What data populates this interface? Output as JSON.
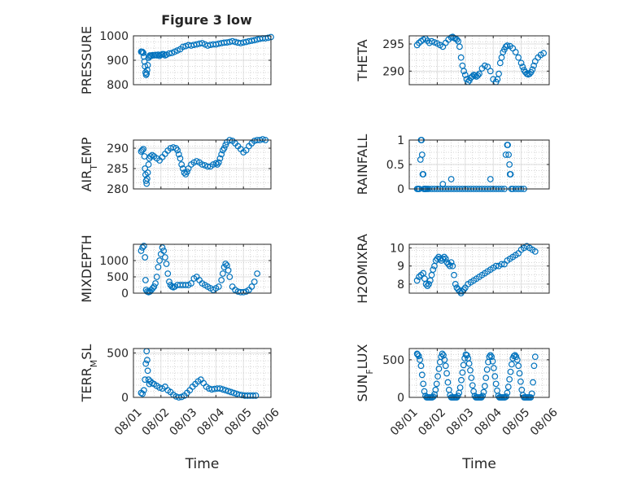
{
  "figure_title": "Figure 3 low",
  "x_axis": {
    "tick_labels": [
      "08/01",
      "08/02",
      "08/03",
      "08/04",
      "08/05",
      "08/06"
    ],
    "label": "Time"
  },
  "colors": {
    "marker": "#0072BD",
    "axis": "#262626",
    "grid": "#DFDFDF",
    "background": "#FFFFFF"
  },
  "chart_data": [
    {
      "type": "scatter",
      "ylabel": "PRESSURE",
      "title": "Figure 3 low",
      "xlim": [
        0,
        5
      ],
      "ylim": [
        800,
        1000
      ],
      "yticks": [
        800,
        900,
        1000
      ],
      "grid": true,
      "x": [
        0.28,
        0.3,
        0.33,
        0.36,
        0.38,
        0.4,
        0.42,
        0.44,
        0.46,
        0.48,
        0.5,
        0.52,
        0.55,
        0.58,
        0.6,
        0.65,
        0.7,
        0.75,
        0.8,
        0.85,
        0.9,
        0.95,
        1.0,
        1.05,
        1.1,
        1.15,
        1.2,
        1.3,
        1.4,
        1.5,
        1.6,
        1.7,
        1.8,
        1.9,
        2.0,
        2.1,
        2.2,
        2.3,
        2.4,
        2.5,
        2.6,
        2.7,
        2.8,
        2.9,
        3.0,
        3.1,
        3.2,
        3.3,
        3.4,
        3.5,
        3.6,
        3.7,
        3.8,
        3.9,
        4.0,
        4.1,
        4.2,
        4.3,
        4.4,
        4.5,
        4.6,
        4.7,
        4.8,
        4.9,
        5.0
      ],
      "y": [
        935,
        935,
        934,
        930,
        915,
        895,
        875,
        850,
        840,
        845,
        860,
        880,
        910,
        915,
        920,
        918,
        921,
        920,
        922,
        920,
        923,
        918,
        922,
        925,
        925,
        920,
        923,
        928,
        930,
        935,
        940,
        945,
        955,
        958,
        962,
        960,
        963,
        965,
        968,
        970,
        965,
        960,
        963,
        965,
        965,
        968,
        970,
        972,
        973,
        975,
        978,
        975,
        972,
        970,
        973,
        975,
        978,
        980,
        982,
        985,
        988,
        990,
        990,
        992,
        995
      ]
    },
    {
      "type": "scatter",
      "ylabel": "THETA",
      "xlim": [
        0,
        5
      ],
      "ylim": [
        287.5,
        296.5
      ],
      "yticks": [
        290,
        295
      ],
      "grid": true,
      "x": [
        0.28,
        0.35,
        0.42,
        0.5,
        0.58,
        0.65,
        0.72,
        0.8,
        0.9,
        1.0,
        1.1,
        1.2,
        1.3,
        1.4,
        1.5,
        1.55,
        1.6,
        1.65,
        1.7,
        1.75,
        1.8,
        1.85,
        1.9,
        1.95,
        2.0,
        2.05,
        2.1,
        2.15,
        2.2,
        2.25,
        2.3,
        2.35,
        2.4,
        2.45,
        2.5,
        2.6,
        2.7,
        2.8,
        2.9,
        3.0,
        3.1,
        3.15,
        3.2,
        3.25,
        3.3,
        3.35,
        3.4,
        3.45,
        3.5,
        3.6,
        3.7,
        3.8,
        3.9,
        4.0,
        4.05,
        4.1,
        4.15,
        4.2,
        4.25,
        4.3,
        4.35,
        4.4,
        4.45,
        4.5,
        4.6,
        4.7,
        4.8
      ],
      "y": [
        294.8,
        295.2,
        295.5,
        295.8,
        296.0,
        295.6,
        295.2,
        295.5,
        295.3,
        295.1,
        294.8,
        294.5,
        295.2,
        295.8,
        296.2,
        296.3,
        296.1,
        296.0,
        295.8,
        295.5,
        294.5,
        292.5,
        291.0,
        290.0,
        289.3,
        288.5,
        288.0,
        288.3,
        288.8,
        289.0,
        289.3,
        289.2,
        289.0,
        289.2,
        289.5,
        290.5,
        291.0,
        290.8,
        290.0,
        288.5,
        288.0,
        288.5,
        289.5,
        291.5,
        292.5,
        293.5,
        294.0,
        294.5,
        294.7,
        294.6,
        294.2,
        293.5,
        292.5,
        291.5,
        290.8,
        290.2,
        289.8,
        289.5,
        289.4,
        289.5,
        289.8,
        290.3,
        291.0,
        291.8,
        292.5,
        293.0,
        293.3
      ]
    },
    {
      "type": "scatter",
      "ylabel": "AIR_TEMP",
      "xlim": [
        0,
        5
      ],
      "ylim": [
        280,
        292
      ],
      "yticks": [
        280,
        285,
        290
      ],
      "grid": true,
      "x": [
        0.28,
        0.32,
        0.36,
        0.4,
        0.42,
        0.44,
        0.46,
        0.48,
        0.5,
        0.52,
        0.55,
        0.58,
        0.62,
        0.68,
        0.75,
        0.85,
        0.95,
        1.05,
        1.15,
        1.25,
        1.35,
        1.45,
        1.55,
        1.6,
        1.65,
        1.7,
        1.75,
        1.8,
        1.85,
        1.9,
        1.95,
        2.0,
        2.1,
        2.2,
        2.3,
        2.4,
        2.5,
        2.6,
        2.7,
        2.8,
        2.9,
        3.0,
        3.05,
        3.1,
        3.15,
        3.2,
        3.25,
        3.3,
        3.35,
        3.4,
        3.5,
        3.6,
        3.7,
        3.8,
        3.9,
        4.0,
        4.1,
        4.2,
        4.3,
        4.4,
        4.5,
        4.6,
        4.7,
        4.8
      ],
      "y": [
        289.2,
        289.5,
        289.8,
        288.0,
        285.0,
        283.5,
        282.0,
        281.3,
        282.5,
        284.0,
        286.0,
        287.5,
        288.0,
        288.3,
        288.0,
        287.5,
        287.0,
        287.8,
        288.6,
        289.4,
        290.0,
        290.2,
        290.0,
        289.5,
        288.5,
        287.5,
        286.0,
        285.0,
        284.0,
        283.6,
        284.2,
        285.0,
        286.0,
        286.5,
        286.8,
        286.5,
        286.0,
        285.8,
        285.5,
        285.5,
        286.0,
        286.3,
        286.0,
        286.5,
        287.5,
        288.5,
        289.5,
        290.0,
        290.8,
        291.5,
        292.0,
        291.8,
        291.2,
        290.5,
        289.8,
        289.0,
        289.5,
        290.5,
        291.2,
        291.8,
        292.0,
        292.0,
        292.2,
        292.0
      ]
    },
    {
      "type": "scatter",
      "ylabel": "RAINFALL",
      "xlim": [
        0,
        5
      ],
      "ylim": [
        0,
        1
      ],
      "yticks": [
        0,
        0.5,
        1
      ],
      "grid": true,
      "x": [
        0.28,
        0.32,
        0.36,
        0.4,
        0.42,
        0.44,
        0.46,
        0.48,
        0.5,
        0.52,
        0.54,
        0.56,
        0.58,
        0.6,
        0.65,
        0.7,
        0.8,
        0.9,
        1.0,
        1.1,
        1.2,
        1.3,
        1.4,
        1.5,
        1.6,
        1.7,
        1.8,
        1.9,
        2.0,
        2.1,
        2.2,
        2.3,
        2.4,
        2.5,
        2.6,
        2.7,
        2.8,
        2.9,
        3.0,
        3.1,
        3.2,
        3.3,
        3.4,
        3.45,
        3.5,
        3.52,
        3.55,
        3.58,
        3.6,
        3.62,
        3.65,
        3.7,
        3.8,
        3.9,
        4.0,
        4.1,
        1.2,
        1.5,
        2.9
      ],
      "y": [
        0,
        0,
        0,
        0.6,
        1.0,
        1.0,
        0.7,
        0.3,
        0.3,
        0,
        0,
        0,
        0,
        0,
        0,
        0,
        0,
        0,
        0,
        0,
        0,
        0,
        0,
        0,
        0,
        0,
        0,
        0,
        0,
        0,
        0,
        0,
        0,
        0,
        0,
        0,
        0,
        0,
        0,
        0,
        0,
        0,
        0,
        0.7,
        0.9,
        0.9,
        0.7,
        0.5,
        0.3,
        0.3,
        0,
        0,
        0,
        0,
        0,
        0,
        0.1,
        0.2,
        0.2
      ]
    },
    {
      "type": "scatter",
      "ylabel": "MIXDEPTH",
      "xlim": [
        0,
        5
      ],
      "ylim": [
        0,
        1500
      ],
      "yticks": [
        0,
        500,
        1000
      ],
      "grid": true,
      "x": [
        0.28,
        0.33,
        0.38,
        0.42,
        0.44,
        0.46,
        0.5,
        0.55,
        0.6,
        0.65,
        0.7,
        0.75,
        0.8,
        0.85,
        0.9,
        0.95,
        1.0,
        1.05,
        1.1,
        1.15,
        1.2,
        1.25,
        1.3,
        1.35,
        1.4,
        1.45,
        1.5,
        1.6,
        1.7,
        1.8,
        1.9,
        2.0,
        2.1,
        2.2,
        2.3,
        2.4,
        2.5,
        2.6,
        2.7,
        2.8,
        2.9,
        3.0,
        3.1,
        3.2,
        3.25,
        3.3,
        3.35,
        3.4,
        3.45,
        3.5,
        3.6,
        3.7,
        3.8,
        3.9,
        4.0,
        4.1,
        4.2,
        4.3,
        4.4,
        4.5
      ],
      "y": [
        1300,
        1400,
        1450,
        1100,
        400,
        100,
        50,
        30,
        50,
        100,
        150,
        200,
        300,
        500,
        800,
        1000,
        1200,
        1400,
        1300,
        1100,
        900,
        600,
        350,
        250,
        200,
        180,
        200,
        250,
        250,
        250,
        250,
        250,
        300,
        450,
        500,
        400,
        300,
        250,
        200,
        150,
        100,
        150,
        200,
        400,
        600,
        800,
        900,
        850,
        700,
        500,
        200,
        100,
        50,
        30,
        30,
        50,
        100,
        200,
        350,
        600
      ]
    },
    {
      "type": "scatter",
      "ylabel": "H2OMIXRA",
      "xlim": [
        0,
        5
      ],
      "ylim": [
        7.5,
        10.2
      ],
      "yticks": [
        8,
        9,
        10
      ],
      "grid": true,
      "x": [
        0.28,
        0.35,
        0.42,
        0.5,
        0.55,
        0.6,
        0.65,
        0.7,
        0.75,
        0.8,
        0.85,
        0.9,
        0.95,
        1.0,
        1.05,
        1.1,
        1.15,
        1.2,
        1.25,
        1.3,
        1.35,
        1.4,
        1.45,
        1.5,
        1.55,
        1.6,
        1.65,
        1.7,
        1.75,
        1.8,
        1.85,
        1.9,
        1.95,
        2.0,
        2.1,
        2.2,
        2.3,
        2.4,
        2.5,
        2.6,
        2.7,
        2.8,
        2.9,
        3.0,
        3.1,
        3.2,
        3.3,
        3.4,
        3.5,
        3.6,
        3.7,
        3.8,
        3.9,
        4.0,
        4.1,
        4.2,
        4.3,
        4.4,
        4.5
      ],
      "y": [
        8.2,
        8.4,
        8.5,
        8.6,
        8.3,
        8.0,
        7.9,
        8.0,
        8.2,
        8.5,
        8.8,
        9.0,
        9.3,
        9.4,
        9.5,
        9.4,
        9.3,
        9.4,
        9.5,
        9.4,
        9.2,
        9.1,
        9.0,
        9.2,
        9.0,
        8.5,
        8.0,
        7.8,
        7.7,
        7.6,
        7.5,
        7.6,
        7.7,
        7.8,
        8.0,
        8.1,
        8.2,
        8.3,
        8.4,
        8.5,
        8.6,
        8.7,
        8.8,
        8.9,
        9.0,
        9.0,
        9.1,
        9.1,
        9.3,
        9.4,
        9.5,
        9.6,
        9.7,
        9.9,
        10.0,
        10.1,
        10.0,
        9.9,
        9.8
      ]
    },
    {
      "type": "scatter",
      "ylabel": "TERR_MSL",
      "xlim": [
        0,
        5
      ],
      "ylim": [
        0,
        550
      ],
      "yticks": [
        0,
        500
      ],
      "grid": true,
      "x": [
        0.28,
        0.33,
        0.38,
        0.42,
        0.45,
        0.48,
        0.5,
        0.52,
        0.55,
        0.58,
        0.62,
        0.68,
        0.75,
        0.85,
        0.95,
        1.05,
        1.15,
        1.25,
        1.35,
        1.45,
        1.55,
        1.65,
        1.75,
        1.85,
        1.95,
        2.05,
        2.15,
        2.25,
        2.35,
        2.45,
        2.55,
        2.65,
        2.75,
        2.85,
        2.95,
        3.05,
        3.15,
        3.25,
        3.35,
        3.45,
        3.55,
        3.65,
        3.75,
        3.85,
        3.95,
        4.05,
        4.15,
        4.25,
        4.35,
        4.45
      ],
      "y": [
        50,
        40,
        80,
        200,
        380,
        520,
        420,
        300,
        200,
        150,
        180,
        160,
        150,
        130,
        110,
        100,
        120,
        80,
        60,
        30,
        10,
        0,
        5,
        20,
        50,
        80,
        120,
        150,
        180,
        200,
        160,
        120,
        100,
        90,
        95,
        100,
        100,
        90,
        80,
        70,
        60,
        50,
        40,
        30,
        25,
        20,
        20,
        20,
        20,
        20
      ]
    },
    {
      "type": "scatter",
      "ylabel": "SUN_FLUX",
      "xlim": [
        0,
        5
      ],
      "ylim": [
        0,
        650
      ],
      "yticks": [
        0,
        500
      ],
      "grid": true,
      "x": [
        0.28,
        0.3,
        0.34,
        0.38,
        0.42,
        0.46,
        0.5,
        0.54,
        0.58,
        0.62,
        0.66,
        0.7,
        0.74,
        0.78,
        0.82,
        0.86,
        0.9,
        0.94,
        0.98,
        1.02,
        1.06,
        1.1,
        1.14,
        1.18,
        1.22,
        1.26,
        1.3,
        1.34,
        1.38,
        1.42,
        1.46,
        1.5,
        1.54,
        1.58,
        1.62,
        1.66,
        1.7,
        1.74,
        1.78,
        1.82,
        1.86,
        1.9,
        1.94,
        1.98,
        2.02,
        2.06,
        2.1,
        2.14,
        2.18,
        2.22,
        2.26,
        2.3,
        2.34,
        2.38,
        2.42,
        2.46,
        2.5,
        2.54,
        2.58,
        2.62,
        2.66,
        2.7,
        2.74,
        2.78,
        2.82,
        2.86,
        2.9,
        2.94,
        2.98,
        3.02,
        3.06,
        3.1,
        3.14,
        3.18,
        3.22,
        3.26,
        3.3,
        3.34,
        3.38,
        3.42,
        3.46,
        3.5,
        3.54,
        3.58,
        3.62,
        3.66,
        3.7,
        3.74,
        3.78,
        3.82,
        3.86,
        3.9,
        3.94,
        3.98,
        4.02,
        4.06,
        4.1,
        4.14,
        4.18,
        4.22,
        4.26,
        4.3,
        4.34,
        4.38,
        4.42,
        4.46,
        4.5
      ],
      "y": [
        580,
        570,
        550,
        500,
        420,
        300,
        180,
        80,
        20,
        0,
        0,
        0,
        0,
        0,
        0,
        10,
        40,
        100,
        180,
        280,
        380,
        470,
        540,
        580,
        560,
        500,
        420,
        320,
        200,
        100,
        30,
        0,
        0,
        0,
        0,
        0,
        0,
        20,
        60,
        130,
        230,
        330,
        430,
        520,
        570,
        560,
        520,
        450,
        360,
        260,
        160,
        80,
        20,
        0,
        0,
        0,
        0,
        0,
        0,
        20,
        70,
        150,
        260,
        370,
        470,
        540,
        560,
        540,
        480,
        390,
        280,
        180,
        90,
        20,
        0,
        0,
        0,
        0,
        0,
        0,
        10,
        60,
        140,
        240,
        340,
        440,
        520,
        550,
        560,
        540,
        500,
        420,
        320,
        210,
        100,
        30,
        0,
        0,
        0,
        0,
        0,
        0,
        0,
        50,
        200,
        420,
        540
      ]
    }
  ],
  "panels": [
    {
      "ylabel_main": "PRESSURE",
      "ylabel_sub": "",
      "ylabel_tail": ""
    },
    {
      "ylabel_main": "THETA",
      "ylabel_sub": "",
      "ylabel_tail": ""
    },
    {
      "ylabel_main": "AIR",
      "ylabel_sub": "T",
      "ylabel_tail": "EMP"
    },
    {
      "ylabel_main": "RAINFALL",
      "ylabel_sub": "",
      "ylabel_tail": ""
    },
    {
      "ylabel_main": "MIXDEPTH",
      "ylabel_sub": "",
      "ylabel_tail": ""
    },
    {
      "ylabel_main": "H2OMIXRA",
      "ylabel_sub": "",
      "ylabel_tail": ""
    },
    {
      "ylabel_main": "TERR",
      "ylabel_sub": "M",
      "ylabel_tail": "SL"
    },
    {
      "ylabel_main": "SUN",
      "ylabel_sub": "F",
      "ylabel_tail": "LUX"
    }
  ]
}
